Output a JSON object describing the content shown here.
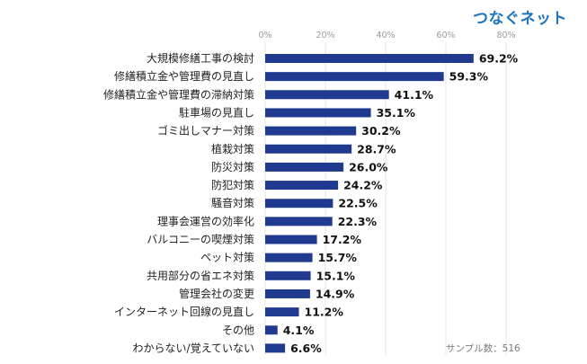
{
  "brand": {
    "logo_text": "つなぐネット",
    "logo_color": "#1e73be"
  },
  "sample_note": "サンプル数：516",
  "chart_data": {
    "type": "bar",
    "orientation": "horizontal",
    "title": "",
    "xlabel": "",
    "ylabel": "",
    "xlim": [
      0,
      80
    ],
    "x_ticks": [
      0,
      20,
      40,
      60,
      80
    ],
    "x_tick_labels": [
      "0%",
      "20%",
      "40%",
      "60%",
      "80%"
    ],
    "grid": true,
    "bar_color": "#1f3a8f",
    "categories": [
      "大規模修繕工事の検討",
      "修繕積立金や管理費の見直し",
      "修繕積立金や管理費の滞納対策",
      "駐車場の見直し",
      "ゴミ出しマナー対策",
      "植栽対策",
      "防災対策",
      "防犯対策",
      "騒音対策",
      "理事会運営の効率化",
      "バルコニーの喫煙対策",
      "ペット対策",
      "共用部分の省エネ対策",
      "管理会社の変更",
      "インターネット回線の見直し",
      "その他",
      "わからない/覚えていない"
    ],
    "values": [
      69.2,
      59.3,
      41.1,
      35.1,
      30.2,
      28.7,
      26.0,
      24.2,
      22.5,
      22.3,
      17.2,
      15.7,
      15.1,
      14.9,
      11.2,
      4.1,
      6.6
    ],
    "value_labels": [
      "69.2%",
      "59.3%",
      "41.1%",
      "35.1%",
      "30.2%",
      "28.7%",
      "26.0%",
      "24.2%",
      "22.5%",
      "22.3%",
      "17.2%",
      "15.7%",
      "15.1%",
      "14.9%",
      "11.2%",
      "4.1%",
      "6.6%"
    ]
  }
}
